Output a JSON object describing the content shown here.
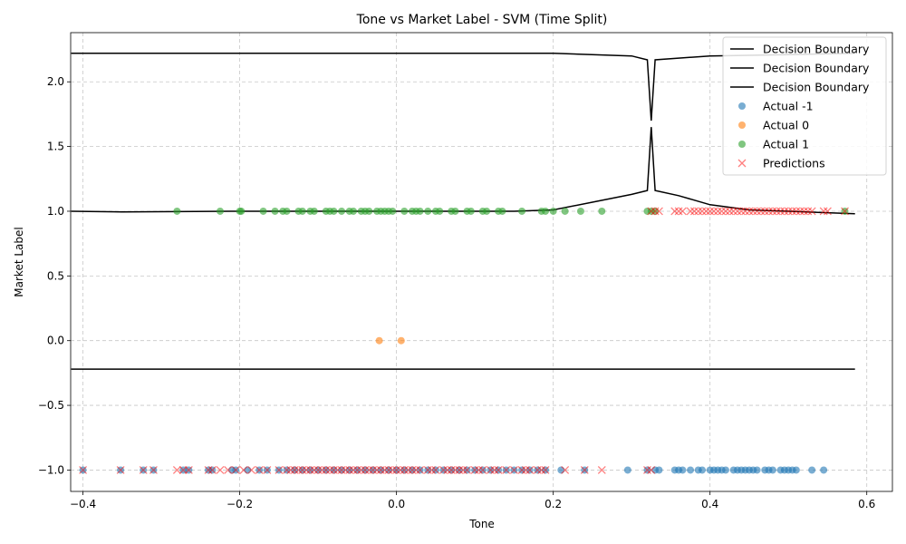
{
  "chart_data": {
    "type": "scatter",
    "title": "Tone vs Market Label - SVM (Time Split)",
    "xlabel": "Tone",
    "ylabel": "Market Label",
    "xlim": [
      -0.4157,
      0.6327
    ],
    "ylim": [
      -1.165,
      2.38
    ],
    "xticks": [
      -0.4,
      -0.2,
      0.0,
      0.2,
      0.4,
      0.6
    ],
    "xtick_labels": [
      "−0.4",
      "−0.2",
      "0.0",
      "0.2",
      "0.4",
      "0.6"
    ],
    "yticks": [
      -1.0,
      -0.5,
      0.0,
      0.5,
      1.0,
      1.5,
      2.0
    ],
    "ytick_labels": [
      "−1.0",
      "−0.5",
      "0.0",
      "0.5",
      "1.0",
      "1.5",
      "2.0"
    ],
    "grid": true,
    "legend_position": "top-right",
    "colors": {
      "actual_neg1": "#1f77b4",
      "actual_0": "#ff7f0e",
      "actual_1": "#2ca02c",
      "predictions": "#ff0000",
      "boundary": "#000000",
      "grid": "#b0b0b0"
    },
    "legend": [
      {
        "label": "Decision Boundary",
        "kind": "line",
        "color": "#000000"
      },
      {
        "label": "Decision Boundary",
        "kind": "line",
        "color": "#000000"
      },
      {
        "label": "Decision Boundary",
        "kind": "line",
        "color": "#000000"
      },
      {
        "label": "Actual -1",
        "kind": "circle",
        "color": "#1f77b4"
      },
      {
        "label": "Actual 0",
        "kind": "circle",
        "color": "#ff7f0e"
      },
      {
        "label": "Actual 1",
        "kind": "circle",
        "color": "#2ca02c"
      },
      {
        "label": "Predictions",
        "kind": "cross",
        "color": "#ff0000"
      }
    ],
    "boundaries": [
      {
        "x": [
          -0.415,
          0.0,
          0.2,
          0.3,
          0.32,
          0.325,
          0.33,
          0.4,
          0.5,
          0.585
        ],
        "y": [
          2.22,
          2.22,
          2.22,
          2.2,
          2.17,
          1.7,
          2.17,
          2.2,
          2.21,
          2.22
        ]
      },
      {
        "x": [
          -0.415,
          -0.35,
          -0.2,
          0.0,
          0.15,
          0.2,
          0.25,
          0.3,
          0.32,
          0.325,
          0.33,
          0.36,
          0.4,
          0.45,
          0.5,
          0.585
        ],
        "y": [
          1.0,
          0.995,
          1.0,
          1.0,
          1.0,
          1.01,
          1.07,
          1.13,
          1.16,
          1.65,
          1.16,
          1.12,
          1.05,
          1.01,
          1.0,
          0.98
        ]
      },
      {
        "x": [
          -0.415,
          0.585
        ],
        "y": [
          -0.22,
          -0.22
        ]
      }
    ],
    "series": [
      {
        "name": "Actual -1",
        "marker": "circle",
        "y": -1,
        "x": [
          -0.4,
          -0.352,
          -0.323,
          -0.31,
          -0.272,
          -0.265,
          -0.24,
          -0.235,
          -0.21,
          -0.205,
          -0.19,
          -0.175,
          -0.165,
          -0.15,
          -0.14,
          -0.13,
          -0.12,
          -0.11,
          -0.1,
          -0.09,
          -0.08,
          -0.07,
          -0.06,
          -0.05,
          -0.04,
          -0.03,
          -0.02,
          -0.01,
          0.0,
          0.01,
          0.02,
          0.03,
          0.04,
          0.05,
          0.06,
          0.07,
          0.08,
          0.09,
          0.1,
          0.11,
          0.12,
          0.13,
          0.14,
          0.15,
          0.16,
          0.17,
          0.18,
          0.19,
          0.21,
          0.24,
          0.295,
          0.32,
          0.33,
          0.335,
          0.355,
          0.36,
          0.365,
          0.375,
          0.385,
          0.39,
          0.4,
          0.405,
          0.41,
          0.415,
          0.42,
          0.43,
          0.435,
          0.44,
          0.445,
          0.45,
          0.455,
          0.46,
          0.47,
          0.475,
          0.48,
          0.49,
          0.495,
          0.5,
          0.505,
          0.51,
          0.53,
          0.545
        ]
      },
      {
        "name": "Actual 0",
        "marker": "circle",
        "y": 0,
        "x": [
          -0.022,
          0.006
        ]
      },
      {
        "name": "Actual 1",
        "marker": "circle",
        "y": 1,
        "x": [
          -0.28,
          -0.225,
          -0.2,
          -0.198,
          -0.17,
          -0.155,
          -0.145,
          -0.14,
          -0.125,
          -0.12,
          -0.11,
          -0.105,
          -0.09,
          -0.085,
          -0.08,
          -0.07,
          -0.06,
          -0.055,
          -0.045,
          -0.04,
          -0.035,
          -0.025,
          -0.02,
          -0.015,
          -0.01,
          -0.005,
          0.01,
          0.02,
          0.025,
          0.03,
          0.04,
          0.05,
          0.055,
          0.07,
          0.075,
          0.09,
          0.095,
          0.11,
          0.115,
          0.13,
          0.135,
          0.16,
          0.185,
          0.19,
          0.2,
          0.215,
          0.235,
          0.262,
          0.32,
          0.325,
          0.33,
          0.572
        ]
      },
      {
        "name": "Predictions",
        "marker": "cross",
        "groups": [
          {
            "y": -1,
            "x": [
              -0.4,
              -0.352,
              -0.323,
              -0.31,
              -0.28,
              -0.272,
              -0.265,
              -0.24,
              -0.235,
              -0.225,
              -0.215,
              -0.205,
              -0.195,
              -0.185,
              -0.175,
              -0.165,
              -0.15,
              -0.14,
              -0.135,
              -0.13,
              -0.125,
              -0.12,
              -0.115,
              -0.11,
              -0.105,
              -0.1,
              -0.095,
              -0.09,
              -0.085,
              -0.08,
              -0.075,
              -0.07,
              -0.065,
              -0.06,
              -0.055,
              -0.05,
              -0.045,
              -0.04,
              -0.035,
              -0.03,
              -0.025,
              -0.02,
              -0.015,
              -0.01,
              -0.005,
              0.0,
              0.005,
              0.01,
              0.015,
              0.02,
              0.025,
              0.03,
              0.04,
              0.045,
              0.05,
              0.06,
              0.065,
              0.07,
              0.075,
              0.08,
              0.085,
              0.09,
              0.1,
              0.105,
              0.11,
              0.12,
              0.125,
              0.13,
              0.14,
              0.15,
              0.16,
              0.165,
              0.17,
              0.18,
              0.185,
              0.19,
              0.215,
              0.24,
              0.262,
              0.32,
              0.325
            ]
          },
          {
            "y": 1,
            "x": [
              0.325,
              0.33,
              0.335,
              0.355,
              0.36,
              0.365,
              0.375,
              0.38,
              0.385,
              0.39,
              0.395,
              0.4,
              0.405,
              0.41,
              0.415,
              0.42,
              0.425,
              0.43,
              0.435,
              0.44,
              0.445,
              0.45,
              0.455,
              0.46,
              0.465,
              0.47,
              0.475,
              0.48,
              0.485,
              0.49,
              0.495,
              0.5,
              0.505,
              0.51,
              0.515,
              0.52,
              0.525,
              0.53,
              0.545,
              0.55,
              0.572
            ]
          }
        ]
      }
    ]
  }
}
